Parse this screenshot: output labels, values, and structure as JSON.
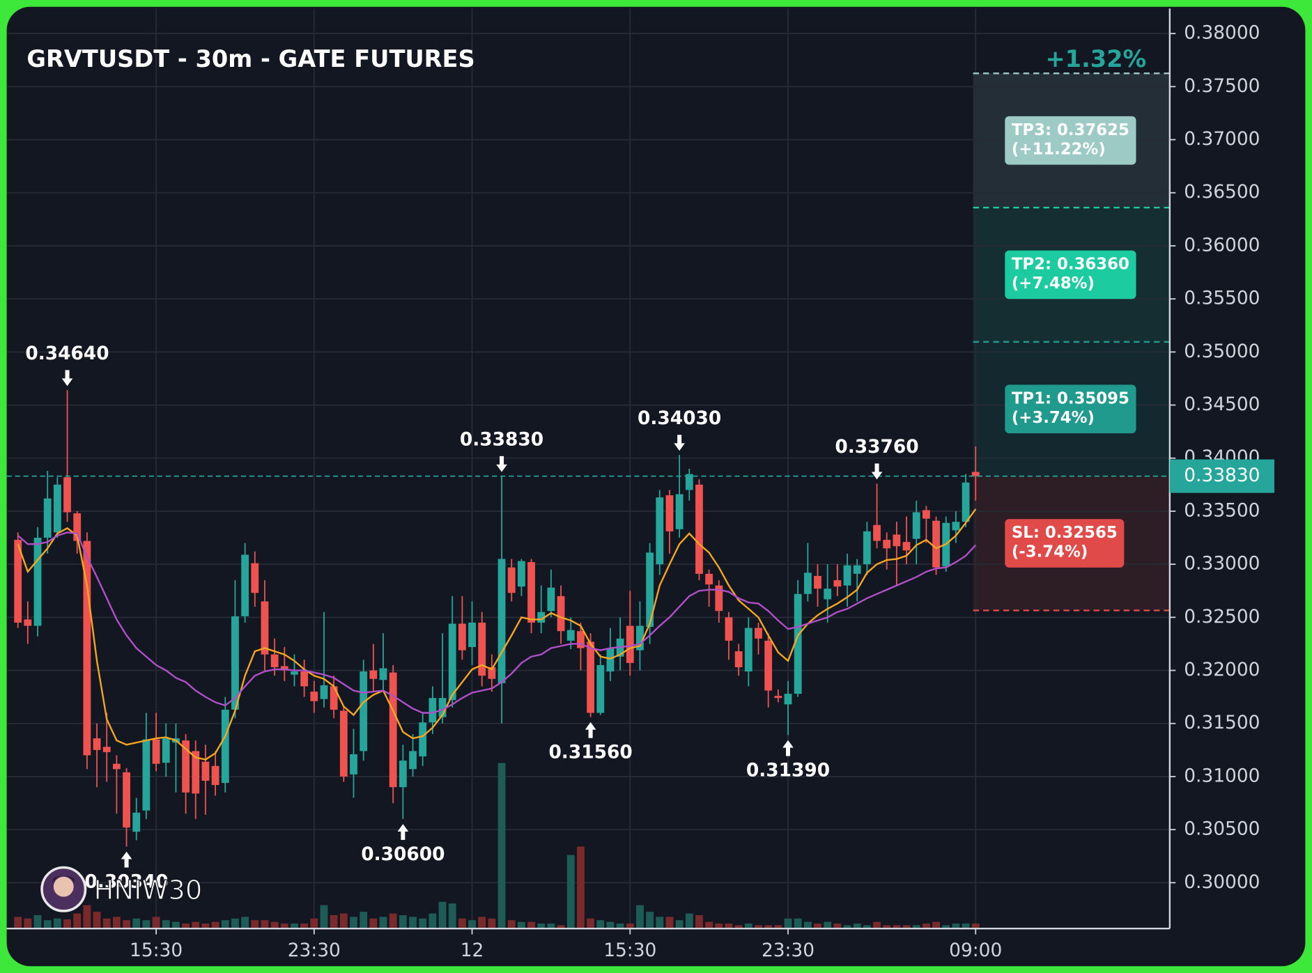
{
  "chart_data": {
    "type": "candlestick",
    "title": "GRVTUSDT - 30m - GATE FUTURES",
    "change_label": "+1.32%",
    "watermark": "HNIW30",
    "categories": [
      null,
      null,
      null,
      null,
      null,
      null,
      null,
      null,
      null,
      null,
      null,
      null,
      null,
      null,
      "15:30",
      null,
      null,
      null,
      null,
      null,
      null,
      null,
      null,
      null,
      null,
      null,
      null,
      null,
      null,
      null,
      "23:30",
      null,
      null,
      null,
      null,
      null,
      null,
      null,
      null,
      null,
      null,
      null,
      null,
      null,
      null,
      null,
      "12",
      null,
      null,
      null,
      null,
      null,
      null,
      null,
      null,
      null,
      null,
      null,
      null,
      null,
      null,
      null,
      "15:30",
      null,
      null,
      null,
      null,
      null,
      null,
      null,
      null,
      null,
      null,
      null,
      null,
      null,
      null,
      null,
      "23:30",
      null,
      null,
      null,
      null,
      null,
      null,
      null,
      null,
      null,
      null,
      null,
      null,
      null,
      null,
      null,
      null,
      null,
      null,
      "09:00"
    ],
    "open": [
      0.3323,
      0.3248,
      0.3242,
      0.3325,
      0.333,
      0.3382,
      0.3348,
      0.3322,
      0.3136,
      0.3128,
      0.3112,
      0.3104,
      0.3048,
      0.3068,
      0.3135,
      0.3113,
      0.3132,
      0.3134,
      0.3124,
      0.3114,
      0.311,
      0.3094,
      0.3163,
      0.3251,
      0.3301,
      0.3265,
      0.3215,
      0.3204,
      0.3196,
      0.3199,
      0.318,
      0.3173,
      0.3185,
      0.3162,
      0.3102,
      0.3124,
      0.32,
      0.3191,
      0.3198,
      0.309,
      0.3107,
      0.3119,
      0.3151,
      0.3156,
      0.3172,
      0.3244,
      0.3222,
      0.3245,
      0.3203,
      0.3188,
      0.3297,
      0.3279,
      0.3302,
      0.3245,
      0.3256,
      0.327,
      0.3228,
      0.3237,
      0.3227,
      0.316,
      0.3199,
      0.3213,
      0.3242,
      0.3219,
      0.3241,
      0.33,
      0.3365,
      0.3333,
      0.337,
      0.3375,
      0.3291,
      0.328,
      0.325,
      0.3218,
      0.3199,
      0.324,
      0.3228,
      0.3176,
      0.3168,
      0.3178,
      0.3272,
      0.3289,
      0.3267,
      0.3285,
      0.328,
      0.3291,
      0.33,
      0.3337,
      0.3323,
      0.3328,
      0.3321,
      0.3324,
      0.3351,
      0.3341,
      0.3298,
      0.3332,
      0.334,
      0.3387
    ],
    "high": [
      0.333,
      0.3265,
      0.3335,
      0.3388,
      0.3382,
      0.3464,
      0.335,
      0.333,
      0.315,
      0.316,
      0.312,
      0.3108,
      0.308,
      0.316,
      0.316,
      0.315,
      0.315,
      0.314,
      0.3134,
      0.313,
      0.3124,
      0.3175,
      0.3285,
      0.332,
      0.3312,
      0.3285,
      0.323,
      0.3222,
      0.3215,
      0.321,
      0.319,
      0.3255,
      0.3195,
      0.3167,
      0.3145,
      0.321,
      0.3225,
      0.3235,
      0.3205,
      0.313,
      0.314,
      0.316,
      0.3185,
      0.3235,
      0.327,
      0.327,
      0.3265,
      0.3255,
      0.3215,
      0.3383,
      0.3305,
      0.3305,
      0.3305,
      0.328,
      0.3295,
      0.328,
      0.325,
      0.3245,
      0.3235,
      0.3215,
      0.324,
      0.325,
      0.3275,
      0.3265,
      0.332,
      0.337,
      0.337,
      0.3403,
      0.339,
      0.338,
      0.3295,
      0.3285,
      0.3255,
      0.3225,
      0.325,
      0.3245,
      0.3235,
      0.3182,
      0.319,
      0.3285,
      0.332,
      0.33,
      0.33,
      0.33,
      0.331,
      0.3305,
      0.334,
      0.3376,
      0.333,
      0.334,
      0.3345,
      0.336,
      0.3355,
      0.3345,
      0.3345,
      0.335,
      0.3385,
      0.3411
    ],
    "low": [
      0.324,
      0.3225,
      0.3232,
      0.331,
      0.3325,
      0.334,
      0.331,
      0.3107,
      0.309,
      0.3095,
      0.3065,
      0.3034,
      0.304,
      0.306,
      0.3105,
      0.31,
      0.3085,
      0.3065,
      0.306,
      0.3064,
      0.3082,
      0.3085,
      0.3155,
      0.3245,
      0.326,
      0.32,
      0.3195,
      0.319,
      0.3185,
      0.3175,
      0.316,
      0.3165,
      0.3155,
      0.3095,
      0.308,
      0.3115,
      0.318,
      0.318,
      0.3075,
      0.306,
      0.31,
      0.311,
      0.314,
      0.315,
      0.3165,
      0.321,
      0.3205,
      0.3185,
      0.318,
      0.315,
      0.3265,
      0.327,
      0.3235,
      0.3235,
      0.325,
      0.3225,
      0.322,
      0.32,
      0.3156,
      0.3158,
      0.319,
      0.32,
      0.3195,
      0.32,
      0.3225,
      0.329,
      0.331,
      0.3325,
      0.336,
      0.3285,
      0.326,
      0.3245,
      0.321,
      0.3195,
      0.3185,
      0.3215,
      0.3165,
      0.317,
      0.3139,
      0.3175,
      0.3265,
      0.326,
      0.3245,
      0.327,
      0.326,
      0.3265,
      0.329,
      0.3315,
      0.3295,
      0.328,
      0.33,
      0.33,
      0.332,
      0.329,
      0.3293,
      0.332,
      0.3335,
      0.336
    ],
    "close": [
      0.3245,
      0.3242,
      0.3325,
      0.3362,
      0.3375,
      0.3349,
      0.3322,
      0.312,
      0.3125,
      0.3123,
      0.3107,
      0.3052,
      0.3066,
      0.3135,
      0.3112,
      0.3136,
      0.3136,
      0.3085,
      0.3084,
      0.3096,
      0.3092,
      0.3163,
      0.3251,
      0.3309,
      0.3273,
      0.3215,
      0.3203,
      0.32,
      0.3199,
      0.3185,
      0.3171,
      0.3186,
      0.3163,
      0.31,
      0.3121,
      0.3199,
      0.3192,
      0.3202,
      0.309,
      0.3115,
      0.3124,
      0.3151,
      0.3174,
      0.3174,
      0.3244,
      0.3219,
      0.3245,
      0.3195,
      0.3192,
      0.3305,
      0.3273,
      0.3303,
      0.3245,
      0.3255,
      0.3278,
      0.3237,
      0.3238,
      0.3221,
      0.316,
      0.3205,
      0.3221,
      0.323,
      0.3207,
      0.3242,
      0.3311,
      0.3363,
      0.3331,
      0.3366,
      0.3385,
      0.3291,
      0.3281,
      0.3256,
      0.3228,
      0.3203,
      0.324,
      0.323,
      0.3181,
      0.3174,
      0.3178,
      0.3272,
      0.3292,
      0.3277,
      0.3277,
      0.3279,
      0.3299,
      0.3299,
      0.3331,
      0.3322,
      0.3315,
      0.3317,
      0.3313,
      0.3349,
      0.3343,
      0.3297,
      0.3339,
      0.334,
      0.3377,
      0.3383
    ],
    "up_color": "#26a69a",
    "down_color": "#ef5350",
    "volume": [
      14,
      12,
      16,
      10,
      12,
      11,
      18,
      28,
      20,
      12,
      14,
      10,
      12,
      10,
      14,
      10,
      8,
      6,
      8,
      6,
      8,
      10,
      12,
      14,
      10,
      10,
      8,
      6,
      6,
      6,
      12,
      28,
      16,
      18,
      14,
      20,
      12,
      14,
      18,
      16,
      14,
      12,
      18,
      32,
      30,
      12,
      10,
      14,
      12,
      198,
      10,
      8,
      8,
      6,
      6,
      4,
      88,
      98,
      12,
      10,
      8,
      6,
      6,
      28,
      20,
      14,
      14,
      10,
      18,
      16,
      8,
      6,
      6,
      4,
      6,
      4,
      4,
      4,
      12,
      12,
      8,
      6,
      8,
      6,
      4,
      6,
      4,
      8,
      4,
      4,
      4,
      4,
      6,
      8,
      4,
      6,
      6,
      6
    ],
    "volume_up_color": "#1d5c57",
    "volume_down_color": "#7b2a2c",
    "lines": [
      {
        "color": "#f5a623",
        "values": [
          0.3319,
          0.3293,
          0.3304,
          0.3315,
          0.3329,
          0.3334,
          0.3327,
          0.328,
          0.3209,
          0.3154,
          0.3134,
          0.313,
          0.3132,
          0.3134,
          0.3136,
          0.3137,
          0.3134,
          0.3126,
          0.3118,
          0.3116,
          0.3122,
          0.3138,
          0.3162,
          0.3195,
          0.3218,
          0.3221,
          0.3218,
          0.3215,
          0.3209,
          0.3201,
          0.3195,
          0.3192,
          0.3185,
          0.3166,
          0.3158,
          0.317,
          0.3177,
          0.3181,
          0.3162,
          0.3142,
          0.3136,
          0.3138,
          0.3146,
          0.3158,
          0.3177,
          0.3189,
          0.3201,
          0.3205,
          0.3201,
          0.3217,
          0.3233,
          0.325,
          0.3248,
          0.3248,
          0.3254,
          0.325,
          0.3247,
          0.3242,
          0.3225,
          0.3213,
          0.3211,
          0.3215,
          0.3221,
          0.3223,
          0.3244,
          0.328,
          0.33,
          0.3319,
          0.3329,
          0.3319,
          0.3311,
          0.3297,
          0.328,
          0.3266,
          0.3258,
          0.325,
          0.3233,
          0.3217,
          0.3209,
          0.3233,
          0.3244,
          0.3252,
          0.3258,
          0.3263,
          0.3269,
          0.3276,
          0.3292,
          0.33,
          0.3304,
          0.3305,
          0.3308,
          0.3318,
          0.3323,
          0.3315,
          0.3319,
          0.3327,
          0.3339,
          0.3352
        ]
      },
      {
        "color": "#b04fc8",
        "values": [
          0.3327,
          0.3319,
          0.3319,
          0.3321,
          0.3327,
          0.333,
          0.3329,
          0.3307,
          0.3288,
          0.3268,
          0.3248,
          0.3233,
          0.3221,
          0.3213,
          0.3205,
          0.32,
          0.3193,
          0.3189,
          0.3181,
          0.3175,
          0.317,
          0.3167,
          0.3174,
          0.3185,
          0.3195,
          0.3199,
          0.3201,
          0.3201,
          0.32,
          0.32,
          0.3198,
          0.3196,
          0.3193,
          0.3187,
          0.3181,
          0.3179,
          0.318,
          0.3181,
          0.3176,
          0.317,
          0.3164,
          0.316,
          0.316,
          0.3163,
          0.3168,
          0.3174,
          0.3179,
          0.3181,
          0.3183,
          0.3189,
          0.3197,
          0.3207,
          0.3213,
          0.3215,
          0.3221,
          0.3223,
          0.3225,
          0.3225,
          0.3221,
          0.3219,
          0.3221,
          0.3222,
          0.3223,
          0.3225,
          0.3233,
          0.3242,
          0.325,
          0.326,
          0.327,
          0.3275,
          0.3276,
          0.3276,
          0.3274,
          0.3268,
          0.3264,
          0.3263,
          0.3256,
          0.3247,
          0.3239,
          0.3241,
          0.3244,
          0.3247,
          0.325,
          0.3255,
          0.3258,
          0.3263,
          0.3268,
          0.3272,
          0.3276,
          0.328,
          0.3284,
          0.3288,
          0.3293,
          0.3296,
          0.3297,
          0.3302,
          0.3308,
          0.3318
        ]
      }
    ],
    "ylim": [
      0.29568,
      0.38236
    ],
    "yticks": [
      {
        "value": 0.3,
        "label": "0.30000"
      },
      {
        "value": 0.305,
        "label": "0.30500"
      },
      {
        "value": 0.31,
        "label": "0.31000"
      },
      {
        "value": 0.315,
        "label": "0.31500"
      },
      {
        "value": 0.32,
        "label": "0.32000"
      },
      {
        "value": 0.325,
        "label": "0.32500"
      },
      {
        "value": 0.33,
        "label": "0.33000"
      },
      {
        "value": 0.335,
        "label": "0.33500"
      },
      {
        "value": 0.34,
        "label": "0.34000"
      },
      {
        "value": 0.345,
        "label": "0.34500"
      },
      {
        "value": 0.35,
        "label": "0.35000"
      },
      {
        "value": 0.355,
        "label": "0.35500"
      },
      {
        "value": 0.36,
        "label": "0.36000"
      },
      {
        "value": 0.365,
        "label": "0.36500"
      },
      {
        "value": 0.37,
        "label": "0.37000"
      },
      {
        "value": 0.375,
        "label": "0.37500"
      },
      {
        "value": 0.38,
        "label": "0.38000"
      }
    ],
    "grid": true,
    "annotations": [
      {
        "label": "0.34640",
        "value": 0.3464,
        "index": 5,
        "kind": "high"
      },
      {
        "label": "0.30340",
        "value": 0.3034,
        "index": 11,
        "kind": "low"
      },
      {
        "label": "0.30600",
        "value": 0.306,
        "index": 39,
        "kind": "low"
      },
      {
        "label": "0.33830",
        "value": 0.3383,
        "index": 49,
        "kind": "high"
      },
      {
        "label": "0.31560",
        "value": 0.3156,
        "index": 58,
        "kind": "low"
      },
      {
        "label": "0.34030",
        "value": 0.3403,
        "index": 67,
        "kind": "high"
      },
      {
        "label": "0.31390",
        "value": 0.3139,
        "index": 78,
        "kind": "low"
      },
      {
        "label": "0.33760",
        "value": 0.3376,
        "index": 87,
        "kind": "high"
      }
    ],
    "entry": {
      "value": 0.3383,
      "label": "0.33830",
      "color": "#26a69a"
    },
    "levels": [
      {
        "label": "TP1: 0.35095",
        "change_label": "(+3.74%)",
        "value": 0.35095,
        "color": "#1f9a8c"
      },
      {
        "label": "TP2: 0.36360",
        "change_label": "(+7.48%)",
        "value": 0.3636,
        "color": "#1ccb9f"
      },
      {
        "label": "TP3: 0.37625",
        "change_label": "(+11.22%)",
        "value": 0.37625,
        "color": "#9ecac6"
      },
      {
        "label": "SL: 0.32565",
        "change_label": "(-3.74%)",
        "value": 0.32565,
        "color": "#e04a48"
      }
    ]
  }
}
